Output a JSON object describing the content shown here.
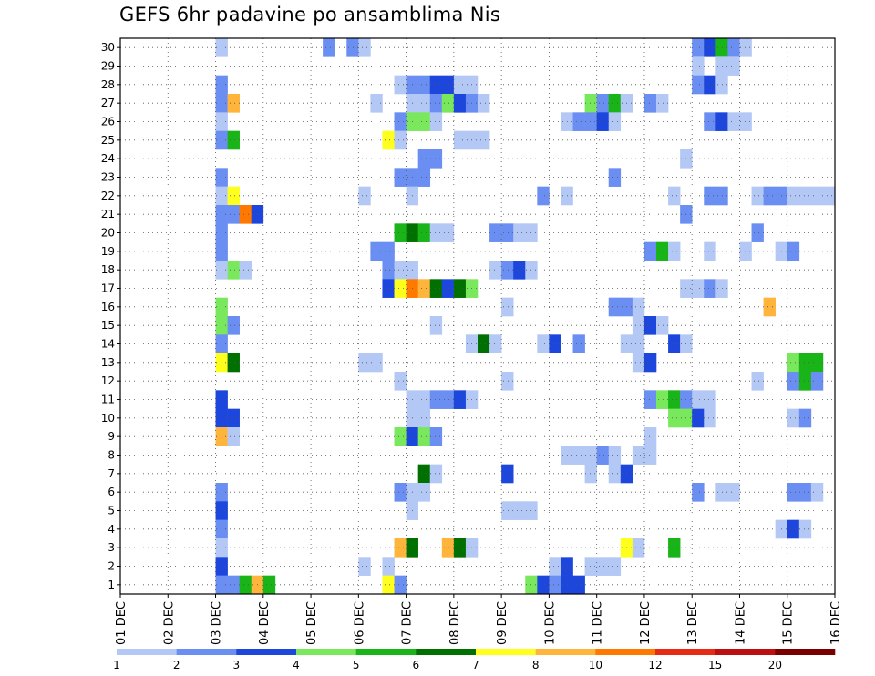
{
  "chart_data": {
    "type": "heatmap",
    "title": "GEFS 6hr padavine po ansamblima Nis",
    "x_tick_labels": [
      "01 DEC",
      "02 DEC",
      "03 DEC",
      "04 DEC",
      "05 DEC",
      "06 DEC",
      "07 DEC",
      "08 DEC",
      "09 DEC",
      "10 DEC",
      "11 DEC",
      "12 DEC",
      "13 DEC",
      "14 DEC",
      "15 DEC",
      "16 DEC"
    ],
    "y_tick_labels": [
      "1",
      "2",
      "3",
      "4",
      "5",
      "6",
      "7",
      "8",
      "9",
      "10",
      "11",
      "12",
      "13",
      "14",
      "15",
      "16",
      "17",
      "18",
      "19",
      "20",
      "21",
      "22",
      "23",
      "24",
      "25",
      "26",
      "27",
      "28",
      "29",
      "30"
    ],
    "x_unit": "6h steps from 01 DEC 00Z",
    "grid": true,
    "legend": {
      "position": "bottom",
      "labels": [
        "1",
        "2",
        "3",
        "4",
        "5",
        "6",
        "7",
        "8",
        "10",
        "12",
        "15",
        "20"
      ],
      "colors": [
        "#b4c8f5",
        "#6b8ef2",
        "#1c46dc",
        "#7ae85c",
        "#18b418",
        "#007000",
        "#ffff1e",
        "#ffb43c",
        "#ff7800",
        "#e82a14",
        "#bc1010",
        "#7a0000"
      ]
    },
    "cells": [
      [
        8,
        30,
        0
      ],
      [
        17,
        30,
        1
      ],
      [
        19,
        30,
        1
      ],
      [
        20,
        30,
        0
      ],
      [
        48,
        30,
        1
      ],
      [
        49,
        30,
        2
      ],
      [
        50,
        30,
        4
      ],
      [
        51,
        30,
        1
      ],
      [
        52,
        30,
        0
      ],
      [
        48,
        29,
        0
      ],
      [
        50,
        29,
        0
      ],
      [
        51,
        29,
        0
      ],
      [
        8,
        28,
        1
      ],
      [
        23,
        28,
        0
      ],
      [
        24,
        28,
        1
      ],
      [
        25,
        28,
        1
      ],
      [
        26,
        28,
        2
      ],
      [
        27,
        28,
        2
      ],
      [
        28,
        28,
        0
      ],
      [
        29,
        28,
        0
      ],
      [
        48,
        28,
        1
      ],
      [
        49,
        28,
        2
      ],
      [
        50,
        28,
        0
      ],
      [
        8,
        27,
        1
      ],
      [
        9,
        27,
        7
      ],
      [
        21,
        27,
        0
      ],
      [
        24,
        27,
        0
      ],
      [
        25,
        27,
        0
      ],
      [
        26,
        27,
        1
      ],
      [
        27,
        27,
        3
      ],
      [
        28,
        27,
        2
      ],
      [
        29,
        27,
        1
      ],
      [
        30,
        27,
        0
      ],
      [
        39,
        27,
        3
      ],
      [
        40,
        27,
        1
      ],
      [
        41,
        27,
        4
      ],
      [
        42,
        27,
        0
      ],
      [
        44,
        27,
        1
      ],
      [
        45,
        27,
        0
      ],
      [
        8,
        26,
        0
      ],
      [
        23,
        26,
        1
      ],
      [
        24,
        26,
        3
      ],
      [
        25,
        26,
        3
      ],
      [
        26,
        26,
        0
      ],
      [
        37,
        26,
        0
      ],
      [
        38,
        26,
        1
      ],
      [
        39,
        26,
        1
      ],
      [
        40,
        26,
        2
      ],
      [
        41,
        26,
        0
      ],
      [
        49,
        26,
        1
      ],
      [
        50,
        26,
        2
      ],
      [
        51,
        26,
        0
      ],
      [
        52,
        26,
        0
      ],
      [
        8,
        25,
        1
      ],
      [
        9,
        25,
        4
      ],
      [
        22,
        25,
        6
      ],
      [
        23,
        25,
        0
      ],
      [
        28,
        25,
        0
      ],
      [
        29,
        25,
        0
      ],
      [
        30,
        25,
        0
      ],
      [
        25,
        24,
        1
      ],
      [
        26,
        24,
        1
      ],
      [
        47,
        24,
        0
      ],
      [
        8,
        23,
        1
      ],
      [
        23,
        23,
        1
      ],
      [
        24,
        23,
        1
      ],
      [
        25,
        23,
        1
      ],
      [
        41,
        23,
        1
      ],
      [
        8,
        22,
        0
      ],
      [
        9,
        22,
        6
      ],
      [
        20,
        22,
        0
      ],
      [
        24,
        22,
        0
      ],
      [
        35,
        22,
        1
      ],
      [
        37,
        22,
        0
      ],
      [
        46,
        22,
        0
      ],
      [
        49,
        22,
        1
      ],
      [
        50,
        22,
        1
      ],
      [
        53,
        22,
        0
      ],
      [
        54,
        22,
        1
      ],
      [
        55,
        22,
        1
      ],
      [
        56,
        22,
        0
      ],
      [
        57,
        22,
        0
      ],
      [
        58,
        22,
        0
      ],
      [
        59,
        22,
        0
      ],
      [
        8,
        21,
        1
      ],
      [
        9,
        21,
        1
      ],
      [
        10,
        21,
        8
      ],
      [
        11,
        21,
        2
      ],
      [
        47,
        21,
        1
      ],
      [
        8,
        20,
        1
      ],
      [
        23,
        20,
        4
      ],
      [
        24,
        20,
        5
      ],
      [
        25,
        20,
        4
      ],
      [
        26,
        20,
        0
      ],
      [
        27,
        20,
        0
      ],
      [
        31,
        20,
        1
      ],
      [
        32,
        20,
        1
      ],
      [
        33,
        20,
        0
      ],
      [
        34,
        20,
        0
      ],
      [
        53,
        20,
        1
      ],
      [
        8,
        19,
        1
      ],
      [
        21,
        19,
        1
      ],
      [
        22,
        19,
        1
      ],
      [
        44,
        19,
        1
      ],
      [
        45,
        19,
        4
      ],
      [
        46,
        19,
        0
      ],
      [
        49,
        19,
        0
      ],
      [
        52,
        19,
        0
      ],
      [
        55,
        19,
        0
      ],
      [
        56,
        19,
        1
      ],
      [
        8,
        18,
        0
      ],
      [
        9,
        18,
        3
      ],
      [
        10,
        18,
        0
      ],
      [
        22,
        18,
        1
      ],
      [
        23,
        18,
        0
      ],
      [
        24,
        18,
        0
      ],
      [
        31,
        18,
        0
      ],
      [
        32,
        18,
        1
      ],
      [
        33,
        18,
        2
      ],
      [
        34,
        18,
        0
      ],
      [
        22,
        17,
        2
      ],
      [
        23,
        17,
        6
      ],
      [
        24,
        17,
        8
      ],
      [
        25,
        17,
        7
      ],
      [
        26,
        17,
        5
      ],
      [
        27,
        17,
        2
      ],
      [
        28,
        17,
        5
      ],
      [
        29,
        17,
        3
      ],
      [
        47,
        17,
        0
      ],
      [
        48,
        17,
        0
      ],
      [
        49,
        17,
        1
      ],
      [
        50,
        17,
        0
      ],
      [
        8,
        16,
        3
      ],
      [
        32,
        16,
        0
      ],
      [
        41,
        16,
        1
      ],
      [
        42,
        16,
        1
      ],
      [
        43,
        16,
        0
      ],
      [
        54,
        16,
        7
      ],
      [
        8,
        15,
        3
      ],
      [
        9,
        15,
        1
      ],
      [
        26,
        15,
        0
      ],
      [
        43,
        15,
        0
      ],
      [
        44,
        15,
        2
      ],
      [
        45,
        15,
        0
      ],
      [
        8,
        14,
        1
      ],
      [
        29,
        14,
        0
      ],
      [
        30,
        14,
        5
      ],
      [
        31,
        14,
        0
      ],
      [
        35,
        14,
        0
      ],
      [
        36,
        14,
        2
      ],
      [
        38,
        14,
        1
      ],
      [
        42,
        14,
        0
      ],
      [
        43,
        14,
        0
      ],
      [
        46,
        14,
        2
      ],
      [
        47,
        14,
        0
      ],
      [
        8,
        13,
        6
      ],
      [
        9,
        13,
        5
      ],
      [
        20,
        13,
        0
      ],
      [
        21,
        13,
        0
      ],
      [
        43,
        13,
        0
      ],
      [
        44,
        13,
        2
      ],
      [
        56,
        13,
        3
      ],
      [
        57,
        13,
        4
      ],
      [
        58,
        13,
        4
      ],
      [
        23,
        12,
        0
      ],
      [
        32,
        12,
        0
      ],
      [
        53,
        12,
        0
      ],
      [
        56,
        12,
        1
      ],
      [
        57,
        12,
        4
      ],
      [
        58,
        12,
        1
      ],
      [
        8,
        11,
        2
      ],
      [
        24,
        11,
        0
      ],
      [
        25,
        11,
        0
      ],
      [
        26,
        11,
        1
      ],
      [
        27,
        11,
        1
      ],
      [
        28,
        11,
        2
      ],
      [
        29,
        11,
        0
      ],
      [
        44,
        11,
        1
      ],
      [
        45,
        11,
        3
      ],
      [
        46,
        11,
        4
      ],
      [
        47,
        11,
        1
      ],
      [
        48,
        11,
        0
      ],
      [
        49,
        11,
        0
      ],
      [
        8,
        10,
        2
      ],
      [
        9,
        10,
        2
      ],
      [
        24,
        10,
        0
      ],
      [
        25,
        10,
        0
      ],
      [
        46,
        10,
        3
      ],
      [
        47,
        10,
        3
      ],
      [
        48,
        10,
        2
      ],
      [
        49,
        10,
        0
      ],
      [
        56,
        10,
        0
      ],
      [
        57,
        10,
        1
      ],
      [
        8,
        9,
        7
      ],
      [
        9,
        9,
        0
      ],
      [
        23,
        9,
        3
      ],
      [
        24,
        9,
        2
      ],
      [
        25,
        9,
        3
      ],
      [
        26,
        9,
        1
      ],
      [
        44,
        9,
        0
      ],
      [
        37,
        8,
        0
      ],
      [
        38,
        8,
        0
      ],
      [
        39,
        8,
        0
      ],
      [
        40,
        8,
        1
      ],
      [
        41,
        8,
        0
      ],
      [
        43,
        8,
        0
      ],
      [
        44,
        8,
        0
      ],
      [
        25,
        7,
        5
      ],
      [
        26,
        7,
        0
      ],
      [
        32,
        7,
        2
      ],
      [
        39,
        7,
        0
      ],
      [
        41,
        7,
        0
      ],
      [
        42,
        7,
        2
      ],
      [
        8,
        6,
        1
      ],
      [
        23,
        6,
        1
      ],
      [
        24,
        6,
        0
      ],
      [
        25,
        6,
        0
      ],
      [
        48,
        6,
        1
      ],
      [
        50,
        6,
        0
      ],
      [
        51,
        6,
        0
      ],
      [
        56,
        6,
        1
      ],
      [
        57,
        6,
        1
      ],
      [
        58,
        6,
        0
      ],
      [
        8,
        5,
        2
      ],
      [
        24,
        5,
        0
      ],
      [
        32,
        5,
        0
      ],
      [
        33,
        5,
        0
      ],
      [
        34,
        5,
        0
      ],
      [
        8,
        4,
        1
      ],
      [
        55,
        4,
        0
      ],
      [
        56,
        4,
        2
      ],
      [
        57,
        4,
        0
      ],
      [
        8,
        3,
        0
      ],
      [
        23,
        3,
        7
      ],
      [
        24,
        3,
        5
      ],
      [
        27,
        3,
        7
      ],
      [
        28,
        3,
        5
      ],
      [
        29,
        3,
        0
      ],
      [
        42,
        3,
        6
      ],
      [
        43,
        3,
        0
      ],
      [
        46,
        3,
        4
      ],
      [
        8,
        2,
        2
      ],
      [
        20,
        2,
        0
      ],
      [
        22,
        2,
        0
      ],
      [
        36,
        2,
        0
      ],
      [
        37,
        2,
        2
      ],
      [
        39,
        2,
        0
      ],
      [
        40,
        2,
        0
      ],
      [
        41,
        2,
        0
      ],
      [
        8,
        1,
        1
      ],
      [
        9,
        1,
        1
      ],
      [
        10,
        1,
        4
      ],
      [
        11,
        1,
        7
      ],
      [
        12,
        1,
        4
      ],
      [
        22,
        1,
        6
      ],
      [
        23,
        1,
        1
      ],
      [
        34,
        1,
        3
      ],
      [
        35,
        1,
        2
      ],
      [
        36,
        1,
        1
      ],
      [
        37,
        1,
        2
      ],
      [
        38,
        1,
        2
      ]
    ]
  }
}
